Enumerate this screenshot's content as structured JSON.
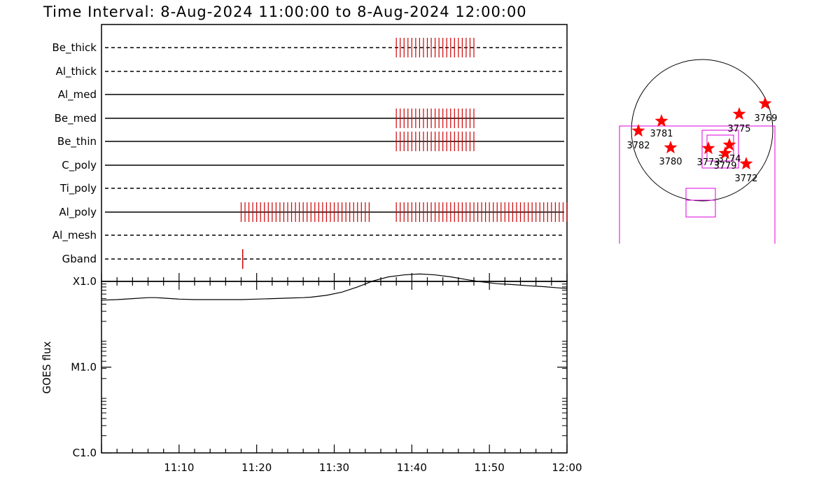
{
  "title": "Time Interval:  8-Aug-2024 11:00:00 to  8-Aug-2024 12:00:00",
  "chart_data": [
    {
      "type": "timeline",
      "x_unit": "minutes after 11:00",
      "xlim": [
        0,
        60
      ],
      "rows": [
        {
          "label": "Be_thick",
          "line": "dashed",
          "marks": [
            38,
            48
          ]
        },
        {
          "label": "Al_thick",
          "line": "dashed",
          "marks": []
        },
        {
          "label": "Al_med",
          "line": "solid",
          "marks": []
        },
        {
          "label": "Be_med",
          "line": "solid",
          "marks": [
            38,
            48
          ]
        },
        {
          "label": "Be_thin",
          "line": "solid",
          "marks": [
            38,
            48
          ]
        },
        {
          "label": "C_poly",
          "line": "solid",
          "marks": []
        },
        {
          "label": "Ti_poly",
          "line": "dashed",
          "marks": []
        },
        {
          "label": "Al_poly",
          "line": "solid",
          "marks": [
            18,
            34.5,
            38,
            60
          ]
        },
        {
          "label": "Al_mesh",
          "line": "dashed",
          "marks": []
        },
        {
          "label": "Gband",
          "line": "dashed",
          "marks": [
            18.2
          ]
        }
      ],
      "mark_color": "#cc0000"
    },
    {
      "type": "line",
      "ylabel": "GOES flux",
      "yscale": "log",
      "ylim": [
        "C1.0",
        "X1.0"
      ],
      "y_ticks": [
        "C1.0",
        "M1.0",
        "X1.0"
      ],
      "x_ticks": [
        "11:10",
        "11:20",
        "11:30",
        "11:40",
        "11:50",
        "12:00"
      ],
      "x_tick_values": [
        10,
        20,
        30,
        40,
        50,
        60
      ],
      "x": [
        0,
        2,
        4,
        6,
        7,
        8,
        10,
        12,
        14,
        16,
        18,
        20,
        22,
        24,
        26,
        27,
        29,
        31,
        33,
        35,
        37,
        39,
        41,
        43,
        45,
        47,
        49,
        51,
        53,
        55,
        57,
        59,
        60
      ],
      "series": [
        {
          "values": [
            0.00047,
            0.00048,
            0.0005,
            0.00052,
            0.00052,
            0.00051,
            0.00049,
            0.00048,
            0.00048,
            0.00048,
            0.00048,
            0.00049,
            0.0005,
            0.00051,
            0.00052,
            0.00053,
            0.00057,
            0.00065,
            0.0008,
            0.00102,
            0.0012,
            0.0013,
            0.00135,
            0.0013,
            0.0012,
            0.00108,
            0.00098,
            0.00091,
            0.00088,
            0.00084,
            0.00081,
            0.00077,
            0.00075
          ]
        }
      ],
      "grid": false
    },
    {
      "type": "scatter",
      "subtype": "solar-disk-map",
      "marker": "star",
      "marker_color": "#ff0000",
      "points": [
        {
          "label": "3769"
        },
        {
          "label": "3775"
        },
        {
          "label": "3781"
        },
        {
          "label": "3782"
        },
        {
          "label": "3780"
        },
        {
          "label": "3773"
        },
        {
          "label": "3774"
        },
        {
          "label": "3779"
        },
        {
          "label": "3772"
        }
      ],
      "fov_color": "#dd00dd"
    }
  ]
}
